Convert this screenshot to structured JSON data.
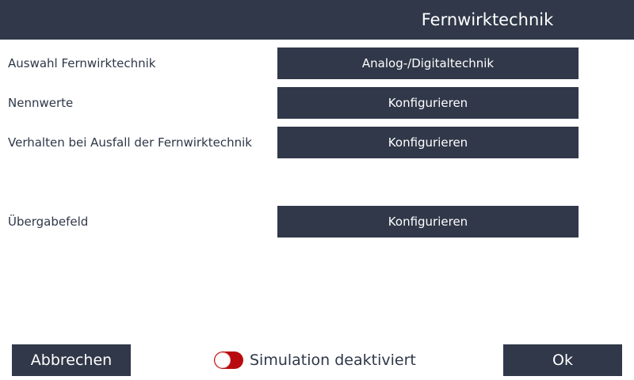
{
  "header": {
    "title": "Fernwirktechnik"
  },
  "rows": [
    {
      "label": "Auswahl Fernwirktechnik",
      "button": "Analog-/Digitaltechnik"
    },
    {
      "label": "Nennwerte",
      "button": "Konfigurieren"
    },
    {
      "label": "Verhalten bei Ausfall der Fernwirktechnik",
      "button": "Konfigurieren"
    },
    {
      "label": "Übergabefeld",
      "button": "Konfigurieren"
    }
  ],
  "footer": {
    "cancel": "Abbrechen",
    "simulation": "Simulation deaktiviert",
    "simulation_enabled": false,
    "ok": "Ok"
  },
  "colors": {
    "primary": "#303849",
    "toggle_off": "#b80b0f"
  }
}
